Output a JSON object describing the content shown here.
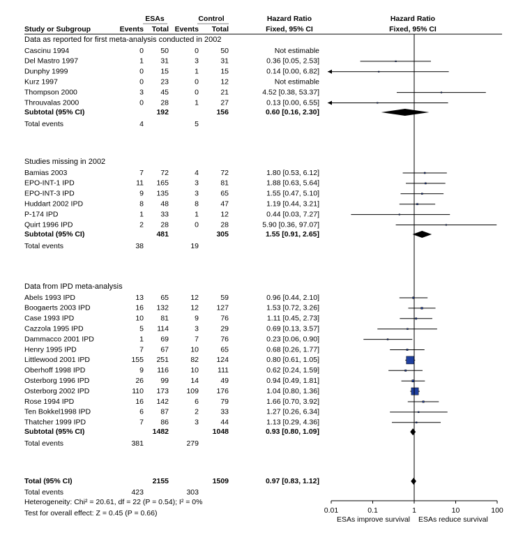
{
  "chart_data": {
    "type": "forest",
    "columns": {
      "study": "Study or Subgroup",
      "esa": "ESAs",
      "control": "Control",
      "events": "Events",
      "total": "Total",
      "hr": "Hazard Ratio",
      "hr_method": "Fixed, 95% CI"
    },
    "groups": [
      {
        "title": "Data as reported for first meta-analysis conducted in 2002",
        "studies": [
          {
            "label": "Cascinu 1994",
            "esa_events": 0,
            "esa_total": 50,
            "ctrl_events": 0,
            "ctrl_total": 50,
            "hr": null,
            "ci": null,
            "hr_label": "Not estimable"
          },
          {
            "label": "Del Mastro 1997",
            "esa_events": 1,
            "esa_total": 31,
            "ctrl_events": 3,
            "ctrl_total": 31,
            "hr": 0.36,
            "ci": [
              0.05,
              2.53
            ],
            "hr_label": "0.36 [0.05, 2.53]"
          },
          {
            "label": "Dunphy 1999",
            "esa_events": 0,
            "esa_total": 15,
            "ctrl_events": 1,
            "ctrl_total": 15,
            "hr": 0.14,
            "ci": [
              0,
              6.82
            ],
            "hr_label": "0.14 [0.00, 6.82]"
          },
          {
            "label": "Kurz 1997",
            "esa_events": 0,
            "esa_total": 23,
            "ctrl_events": 0,
            "ctrl_total": 12,
            "hr": null,
            "ci": null,
            "hr_label": "Not estimable"
          },
          {
            "label": "Thompson 2000",
            "esa_events": 3,
            "esa_total": 45,
            "ctrl_events": 0,
            "ctrl_total": 21,
            "hr": 4.52,
            "ci": [
              0.38,
              53.37
            ],
            "hr_label": "4.52 [0.38, 53.37]"
          },
          {
            "label": "Throuvalas 2000",
            "esa_events": 0,
            "esa_total": 28,
            "ctrl_events": 1,
            "ctrl_total": 27,
            "hr": 0.13,
            "ci": [
              0,
              6.55
            ],
            "hr_label": "0.13 [0.00, 6.55]"
          }
        ],
        "subtotal": {
          "label": "Subtotal (95% CI)",
          "esa_total": 192,
          "ctrl_total": 156,
          "hr": 0.6,
          "ci": [
            0.16,
            2.3
          ],
          "hr_label": "0.60 [0.16, 2.30]"
        },
        "total_events": {
          "label": "Total events",
          "esa_events": 4,
          "ctrl_events": 5
        }
      },
      {
        "title": "Studies missing in 2002",
        "studies": [
          {
            "label": "Bamias 2003",
            "esa_events": 7,
            "esa_total": 72,
            "ctrl_events": 4,
            "ctrl_total": 72,
            "hr": 1.8,
            "ci": [
              0.53,
              6.12
            ],
            "hr_label": "1.80 [0.53, 6.12]"
          },
          {
            "label": "EPO-INT-1  IPD",
            "esa_events": 11,
            "esa_total": 165,
            "ctrl_events": 3,
            "ctrl_total": 81,
            "hr": 1.88,
            "ci": [
              0.63,
              5.64
            ],
            "hr_label": "1.88 [0.63, 5.64]"
          },
          {
            "label": "EPO-INT-3  IPD",
            "esa_events": 9,
            "esa_total": 135,
            "ctrl_events": 3,
            "ctrl_total": 65,
            "hr": 1.55,
            "ci": [
              0.47,
              5.1
            ],
            "hr_label": "1.55 [0.47, 5.10]"
          },
          {
            "label": "Huddart 2002 IPD",
            "esa_events": 8,
            "esa_total": 48,
            "ctrl_events": 8,
            "ctrl_total": 47,
            "hr": 1.19,
            "ci": [
              0.44,
              3.21
            ],
            "hr_label": "1.19 [0.44, 3.21]"
          },
          {
            "label": "P-174  IPD",
            "esa_events": 1,
            "esa_total": 33,
            "ctrl_events": 1,
            "ctrl_total": 12,
            "hr": 0.44,
            "ci": [
              0.03,
              7.27
            ],
            "hr_label": "0.44 [0.03, 7.27]"
          },
          {
            "label": "Quirt 1996 IPD",
            "esa_events": 2,
            "esa_total": 28,
            "ctrl_events": 0,
            "ctrl_total": 28,
            "hr": 5.9,
            "ci": [
              0.36,
              97.07
            ],
            "hr_label": "5.90 [0.36, 97.07]"
          }
        ],
        "subtotal": {
          "label": "Subtotal (95% CI)",
          "esa_total": 481,
          "ctrl_total": 305,
          "hr": 1.55,
          "ci": [
            0.91,
            2.65
          ],
          "hr_label": "1.55 [0.91, 2.65]"
        },
        "total_events": {
          "label": "Total events",
          "esa_events": 38,
          "ctrl_events": 19
        }
      },
      {
        "title": "Data from IPD meta-analysis",
        "studies": [
          {
            "label": "Abels 1993 IPD",
            "esa_events": 13,
            "esa_total": 65,
            "ctrl_events": 12,
            "ctrl_total": 59,
            "hr": 0.96,
            "ci": [
              0.44,
              2.1
            ],
            "hr_label": "0.96 [0.44, 2.10]"
          },
          {
            "label": "Boogaerts 2003 IPD",
            "esa_events": 16,
            "esa_total": 132,
            "ctrl_events": 12,
            "ctrl_total": 127,
            "hr": 1.53,
            "ci": [
              0.72,
              3.26
            ],
            "hr_label": "1.53 [0.72, 3.26]"
          },
          {
            "label": "Case 1993 IPD",
            "esa_events": 10,
            "esa_total": 81,
            "ctrl_events": 9,
            "ctrl_total": 76,
            "hr": 1.11,
            "ci": [
              0.45,
              2.73
            ],
            "hr_label": "1.11 [0.45, 2.73]"
          },
          {
            "label": "Cazzola 1995 IPD",
            "esa_events": 5,
            "esa_total": 114,
            "ctrl_events": 3,
            "ctrl_total": 29,
            "hr": 0.69,
            "ci": [
              0.13,
              3.57
            ],
            "hr_label": "0.69 [0.13, 3.57]"
          },
          {
            "label": "Dammacco 2001 IPD",
            "esa_events": 1,
            "esa_total": 69,
            "ctrl_events": 7,
            "ctrl_total": 76,
            "hr": 0.23,
            "ci": [
              0.06,
              0.9
            ],
            "hr_label": "0.23 [0.06, 0.90]"
          },
          {
            "label": "Henry 1995 IPD",
            "esa_events": 7,
            "esa_total": 67,
            "ctrl_events": 10,
            "ctrl_total": 65,
            "hr": 0.68,
            "ci": [
              0.26,
              1.77
            ],
            "hr_label": "0.68 [0.26, 1.77]"
          },
          {
            "label": "Littlewood 2001 IPD",
            "esa_events": 155,
            "esa_total": 251,
            "ctrl_events": 82,
            "ctrl_total": 124,
            "hr": 0.8,
            "ci": [
              0.61,
              1.05
            ],
            "hr_label": "0.80 [0.61, 1.05]"
          },
          {
            "label": "Oberhoff 1998 IPD",
            "esa_events": 9,
            "esa_total": 116,
            "ctrl_events": 10,
            "ctrl_total": 111,
            "hr": 0.62,
            "ci": [
              0.24,
              1.59
            ],
            "hr_label": "0.62 [0.24, 1.59]"
          },
          {
            "label": "Osterborg 1996 IPD",
            "esa_events": 26,
            "esa_total": 99,
            "ctrl_events": 14,
            "ctrl_total": 49,
            "hr": 0.94,
            "ci": [
              0.49,
              1.81
            ],
            "hr_label": "0.94 [0.49, 1.81]"
          },
          {
            "label": "Osterborg 2002 IPD",
            "esa_events": 110,
            "esa_total": 173,
            "ctrl_events": 109,
            "ctrl_total": 176,
            "hr": 1.04,
            "ci": [
              0.8,
              1.36
            ],
            "hr_label": "1.04 [0.80, 1.36]"
          },
          {
            "label": "Rose 1994 IPD",
            "esa_events": 16,
            "esa_total": 142,
            "ctrl_events": 6,
            "ctrl_total": 79,
            "hr": 1.66,
            "ci": [
              0.7,
              3.92
            ],
            "hr_label": "1.66 [0.70, 3.92]"
          },
          {
            "label": "Ten Bokkel1998  IPD",
            "esa_events": 6,
            "esa_total": 87,
            "ctrl_events": 2,
            "ctrl_total": 33,
            "hr": 1.27,
            "ci": [
              0.26,
              6.34
            ],
            "hr_label": "1.27 [0.26, 6.34]"
          },
          {
            "label": "Thatcher 1999 IPD",
            "esa_events": 7,
            "esa_total": 86,
            "ctrl_events": 3,
            "ctrl_total": 44,
            "hr": 1.13,
            "ci": [
              0.29,
              4.36
            ],
            "hr_label": "1.13 [0.29, 4.36]"
          }
        ],
        "subtotal": {
          "label": "Subtotal (95% CI)",
          "esa_total": 1482,
          "ctrl_total": 1048,
          "hr": 0.93,
          "ci": [
            0.8,
            1.09
          ],
          "hr_label": "0.93 [0.80, 1.09]"
        },
        "total_events": {
          "label": "Total events",
          "esa_events": 381,
          "ctrl_events": 279
        }
      }
    ],
    "overall": {
      "label": "Total (95% CI)",
      "esa_total": 2155,
      "ctrl_total": 1509,
      "hr": 0.97,
      "ci": [
        0.83,
        1.12
      ],
      "hr_label": "0.97 [0.83, 1.12]"
    },
    "overall_events": {
      "label": "Total events",
      "esa_events": 423,
      "ctrl_events": 303
    },
    "heterogeneity": "Heterogeneity: Chi² = 20.61, df = 22 (P = 0.54); I² = 0%",
    "overall_effect": "Test for overall effect: Z = 0.45 (P = 0.66)",
    "xlim": [
      0.01,
      100
    ],
    "xticks": [
      0.01,
      0.1,
      1,
      10,
      100
    ],
    "log_x": true,
    "x_label_left": "ESAs improve survival",
    "x_label_right": "ESAs reduce survival",
    "color": "#1f3f9f"
  }
}
